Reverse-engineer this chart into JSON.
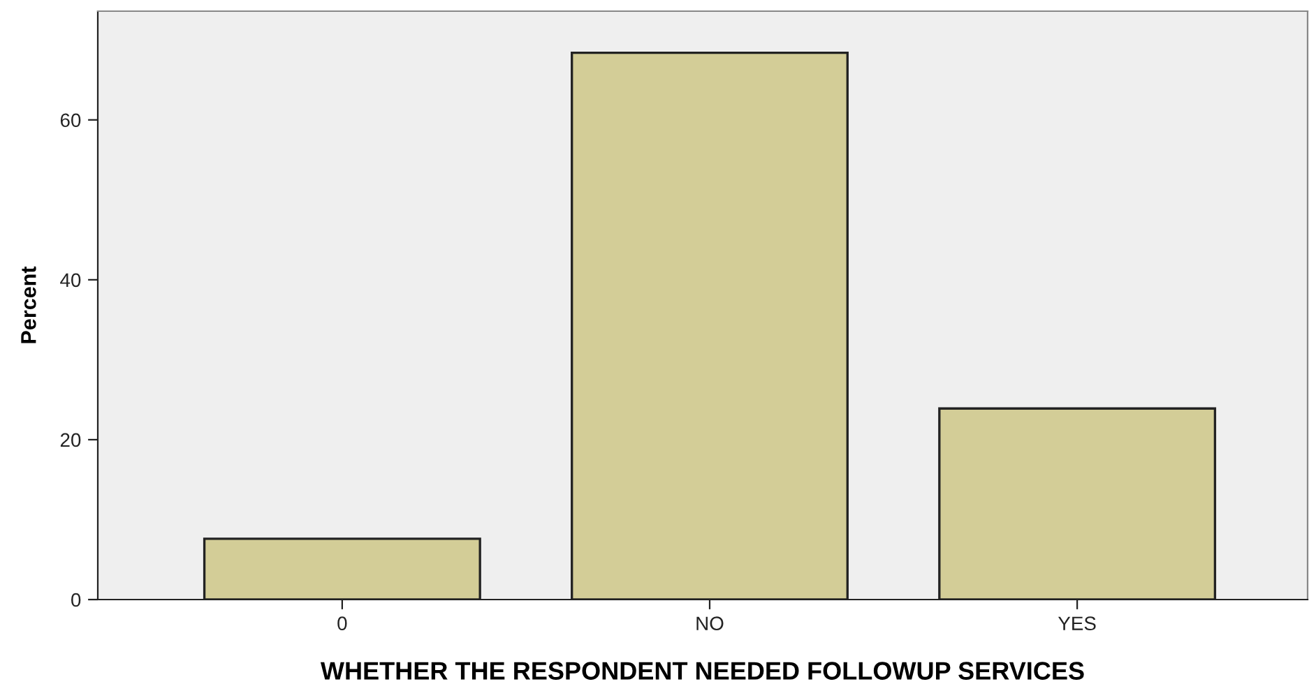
{
  "chart_data": {
    "type": "bar",
    "xlabel": "WHETHER THE RESPONDENT NEEDED FOLLOWUP SERVICES",
    "ylabel": "Percent",
    "categories": [
      "0",
      "NO",
      "YES"
    ],
    "values": [
      7.6,
      68.4,
      23.9
    ],
    "color": "#d3cd97",
    "ylim": [
      0,
      73.6
    ],
    "yticks": [
      0,
      20,
      40,
      60
    ],
    "grid": false,
    "legend": false
  }
}
